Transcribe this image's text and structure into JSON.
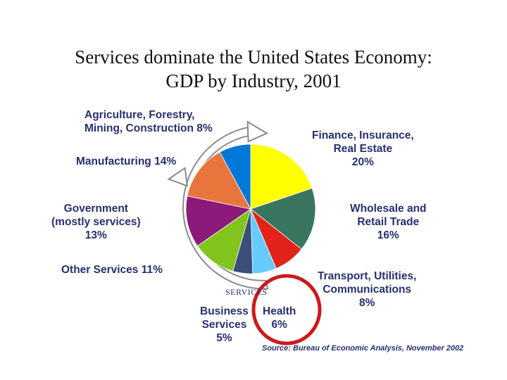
{
  "chart_data": {
    "type": "pie",
    "title": [
      "Services dominate the United States Economy:",
      "GDP by Industry, 2001"
    ],
    "slices": [
      {
        "label": [
          "Finance, Insurance,",
          "Real Estate",
          "20%"
        ],
        "value": 20,
        "color": "#ffff00"
      },
      {
        "label": [
          "Wholesale and",
          "Retail Trade",
          "16%"
        ],
        "value": 16,
        "color": "#3a7560"
      },
      {
        "label": [
          "Transport, Utilities,",
          "Communications",
          "8%"
        ],
        "value": 8,
        "color": "#e2231a"
      },
      {
        "label": [
          "Health",
          "6%"
        ],
        "value": 6,
        "color": "#66ccff"
      },
      {
        "label": [
          "Business",
          "Services",
          "5%"
        ],
        "value": 5,
        "color": "#3d4e78"
      },
      {
        "label": [
          "Other Services 11%"
        ],
        "value": 11,
        "color": "#80c41c"
      },
      {
        "label": [
          "Government",
          "(mostly services)",
          "13%"
        ],
        "value": 13,
        "color": "#8b1a7a"
      },
      {
        "label": [
          "Manufacturing 14%"
        ],
        "value": 14,
        "color": "#e8763c"
      },
      {
        "label": [
          "Agriculture, Forestry,",
          "Mining, Construction 8%"
        ],
        "value": 8,
        "color": "#0078d7"
      }
    ],
    "arrow_label": "SERVICES",
    "highlight": "Health",
    "source": "Source: Bureau of Economic Analysis, November 2002"
  }
}
